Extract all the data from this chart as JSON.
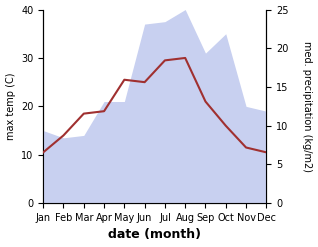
{
  "months": [
    "Jan",
    "Feb",
    "Mar",
    "Apr",
    "May",
    "Jun",
    "Jul",
    "Aug",
    "Sep",
    "Oct",
    "Nov",
    "Dec"
  ],
  "max_temp": [
    10.5,
    14.0,
    18.5,
    19.0,
    25.5,
    25.0,
    29.5,
    30.0,
    21.0,
    16.0,
    11.5,
    10.5
  ],
  "precipitation": [
    15.0,
    13.5,
    14.0,
    21.0,
    21.0,
    37.0,
    37.5,
    40.0,
    31.0,
    35.0,
    20.0,
    19.0
  ],
  "temp_color": "#a03030",
  "precip_fill_color": "#c8d0f0",
  "temp_ylim": [
    0,
    40
  ],
  "precip_ylim": [
    0,
    25
  ],
  "xlabel": "date (month)",
  "ylabel_left": "max temp (C)",
  "ylabel_right": "med. precipitation (kg/m2)",
  "tick_fontsize": 7,
  "label_fontsize": 9,
  "temp_linewidth": 1.5
}
